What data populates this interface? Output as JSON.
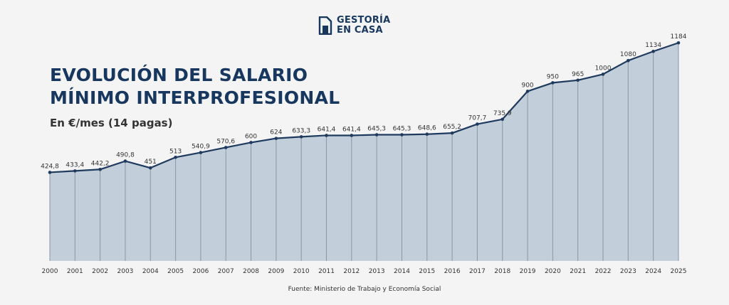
{
  "brand": {
    "line1": "GESTORÍA",
    "line2": "EN CASA"
  },
  "title_line1": "EVOLUCIÓN DEL SALARIO",
  "title_line2": "MÍNIMO INTERPROFESIONAL",
  "subtitle": "En €/mes (14 pagas)",
  "source": "Fuente: Ministerio de Trabajo y Economía Social",
  "colors": {
    "line": "#1f3a5f",
    "area": "#c2ceda",
    "divider": "#8a97a6",
    "text": "#333333",
    "brand": "#17375e"
  },
  "chart_data": {
    "type": "area",
    "x": [
      "2000",
      "2001",
      "2002",
      "2003",
      "2004",
      "2005",
      "2006",
      "2007",
      "2008",
      "2009",
      "2010",
      "2011",
      "2012",
      "2013",
      "2014",
      "2015",
      "2016",
      "2017",
      "2018",
      "2019",
      "2020",
      "2021",
      "2022",
      "2023",
      "2024",
      "2025"
    ],
    "values": [
      424.8,
      433.4,
      442.2,
      490.8,
      451,
      513,
      540.9,
      570.6,
      600,
      624,
      633.3,
      641.4,
      641.4,
      645.3,
      645.3,
      648.6,
      655.2,
      707.7,
      735.9,
      900,
      950,
      965,
      1000,
      1080,
      1134,
      1184
    ],
    "labels": [
      "424,8",
      "433,4",
      "442,2",
      "490,8",
      "451",
      "513",
      "540,9",
      "570,6",
      "600",
      "624",
      "633,3",
      "641,4",
      "641,4",
      "645,3",
      "645,3",
      "648,6",
      "655,2",
      "707,7",
      "735,9",
      "900",
      "950",
      "965",
      "1000",
      "1080",
      "1134",
      "1184"
    ],
    "title": "EVOLUCIÓN DEL SALARIO MÍNIMO INTERPROFESIONAL",
    "subtitle": "En €/mes (14 pagas)",
    "xlabel": "",
    "ylabel": "",
    "grid": false,
    "legend": "none"
  }
}
